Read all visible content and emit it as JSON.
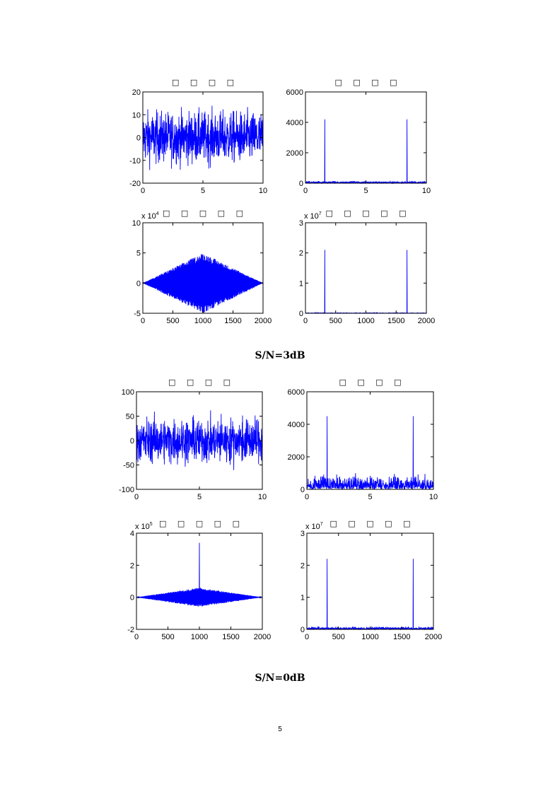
{
  "page_number": "5",
  "line_color": "#0000ff",
  "figures": [
    {
      "caption": "S/N=3dB",
      "panels": [
        {
          "title": "□ □ □ □",
          "xticks": [
            "0",
            "5",
            "10"
          ],
          "yticks": [
            "20",
            "10",
            "0",
            "-10",
            "-20"
          ],
          "exponent": "",
          "exponent_power": "",
          "chart_data": {
            "type": "line",
            "signal": "noise",
            "xlim": [
              0,
              10
            ],
            "ylim": [
              -20,
              20
            ],
            "amplitude": 10
          }
        },
        {
          "title": "□ □ □ □",
          "xticks": [
            "0",
            "5",
            "10"
          ],
          "yticks": [
            "6000",
            "4000",
            "2000",
            "0"
          ],
          "exponent": "",
          "exponent_power": "",
          "chart_data": {
            "type": "line",
            "signal": "spectrum",
            "xlim": [
              0,
              10
            ],
            "ylim": [
              0,
              6000
            ],
            "peaks": [
              [
                1.6,
                4200
              ],
              [
                8.4,
                4200
              ]
            ],
            "noise_floor": 80
          }
        },
        {
          "title": "□ □ □ □ □",
          "xticks": [
            "0",
            "500",
            "1000",
            "1500",
            "2000"
          ],
          "yticks": [
            "10",
            "5",
            "0",
            "-5"
          ],
          "exponent": "x 10",
          "exponent_power": "4",
          "chart_data": {
            "type": "line",
            "signal": "diamond",
            "xlim": [
              0,
              2000
            ],
            "ylim": [
              -5,
              10
            ],
            "peak": 5,
            "center": 1000
          }
        },
        {
          "title": "□ □ □ □ □",
          "xticks": [
            "0",
            "500",
            "1000",
            "1500",
            "2000"
          ],
          "yticks": [
            "3",
            "2",
            "1",
            "0"
          ],
          "exponent": "x 10",
          "exponent_power": "7",
          "chart_data": {
            "type": "line",
            "signal": "spectrum",
            "xlim": [
              0,
              2000
            ],
            "ylim": [
              0,
              3
            ],
            "peaks": [
              [
                320,
                2.1
              ],
              [
                1680,
                2.1
              ]
            ],
            "noise_floor": 0.01
          }
        }
      ]
    },
    {
      "caption": "S/N=0dB",
      "panels": [
        {
          "title": "□ □ □ □",
          "xticks": [
            "0",
            "5",
            "10"
          ],
          "yticks": [
            "100",
            "50",
            "0",
            "-50",
            "-100"
          ],
          "exponent": "",
          "exponent_power": "",
          "chart_data": {
            "type": "line",
            "signal": "noise",
            "xlim": [
              0,
              10
            ],
            "ylim": [
              -100,
              100
            ],
            "amplitude": 40
          }
        },
        {
          "title": "□ □ □ □",
          "xticks": [
            "0",
            "5",
            "10"
          ],
          "yticks": [
            "6000",
            "4000",
            "2000",
            "0"
          ],
          "exponent": "",
          "exponent_power": "",
          "chart_data": {
            "type": "line",
            "signal": "spectrum",
            "xlim": [
              0,
              10
            ],
            "ylim": [
              0,
              6000
            ],
            "peaks": [
              [
                1.6,
                4500
              ],
              [
                8.4,
                4500
              ]
            ],
            "noise_floor": 500
          }
        },
        {
          "title": "□ □ □ □ □",
          "xticks": [
            "0",
            "500",
            "1000",
            "1500",
            "2000"
          ],
          "yticks": [
            "4",
            "2",
            "0",
            "-2"
          ],
          "exponent": "x 10",
          "exponent_power": "5",
          "chart_data": {
            "type": "line",
            "signal": "diamond",
            "xlim": [
              0,
              2000
            ],
            "ylim": [
              -2,
              4
            ],
            "peak": 0.6,
            "center": 1000,
            "spike": 3.4
          }
        },
        {
          "title": "□ □ □ □ □",
          "xticks": [
            "0",
            "500",
            "1000",
            "1500",
            "2000"
          ],
          "yticks": [
            "3",
            "2",
            "1",
            "0"
          ],
          "exponent": "x 10",
          "exponent_power": "7",
          "chart_data": {
            "type": "line",
            "signal": "spectrum",
            "xlim": [
              0,
              2000
            ],
            "ylim": [
              0,
              3
            ],
            "peaks": [
              [
                320,
                2.2
              ],
              [
                1680,
                2.2
              ]
            ],
            "noise_floor": 0.05
          }
        }
      ]
    }
  ]
}
